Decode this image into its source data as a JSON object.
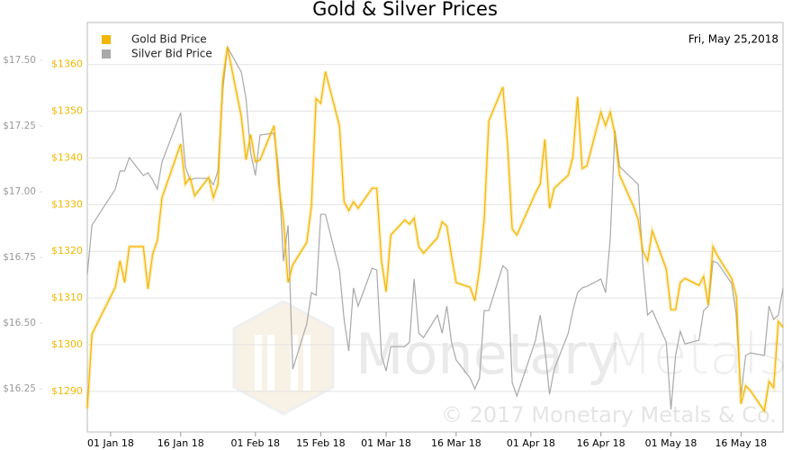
{
  "chart_data": {
    "type": "line",
    "title": "Gold & Silver Prices",
    "date_label": "Fri, May 25,2018",
    "watermark_brand": [
      "Monetary",
      "Metals"
    ],
    "copyright": "© 2017 Monetary Metals & Co.",
    "legend": "upper left",
    "grid": true,
    "x": [
      "2017-12-27",
      "2017-12-28",
      "2018-01-02",
      "2018-01-03",
      "2018-01-04",
      "2018-01-05",
      "2018-01-08",
      "2018-01-09",
      "2018-01-10",
      "2018-01-11",
      "2018-01-12",
      "2018-01-16",
      "2018-01-17",
      "2018-01-18",
      "2018-01-19",
      "2018-01-22",
      "2018-01-23",
      "2018-01-24",
      "2018-01-25",
      "2018-01-26",
      "2018-01-29",
      "2018-01-30",
      "2018-01-31",
      "2018-02-01",
      "2018-02-02",
      "2018-02-05",
      "2018-02-06",
      "2018-02-07",
      "2018-02-08",
      "2018-02-09",
      "2018-02-12",
      "2018-02-13",
      "2018-02-14",
      "2018-02-15",
      "2018-02-16",
      "2018-02-19",
      "2018-02-20",
      "2018-02-21",
      "2018-02-22",
      "2018-02-23",
      "2018-02-26",
      "2018-02-27",
      "2018-02-28",
      "2018-03-01",
      "2018-03-02",
      "2018-03-05",
      "2018-03-06",
      "2018-03-07",
      "2018-03-08",
      "2018-03-09",
      "2018-03-12",
      "2018-03-13",
      "2018-03-14",
      "2018-03-15",
      "2018-03-16",
      "2018-03-19",
      "2018-03-20",
      "2018-03-21",
      "2018-03-22",
      "2018-03-23",
      "2018-03-26",
      "2018-03-27",
      "2018-03-28",
      "2018-03-29",
      "2018-04-02",
      "2018-04-03",
      "2018-04-04",
      "2018-04-05",
      "2018-04-06",
      "2018-04-09",
      "2018-04-10",
      "2018-04-11",
      "2018-04-12",
      "2018-04-13",
      "2018-04-16",
      "2018-04-17",
      "2018-04-18",
      "2018-04-19",
      "2018-04-20",
      "2018-04-23",
      "2018-04-24",
      "2018-04-25",
      "2018-04-26",
      "2018-04-27",
      "2018-04-30",
      "2018-05-01",
      "2018-05-02",
      "2018-05-03",
      "2018-05-04",
      "2018-05-07",
      "2018-05-08",
      "2018-05-09",
      "2018-05-10",
      "2018-05-11",
      "2018-05-14",
      "2018-05-15",
      "2018-05-16",
      "2018-05-17",
      "2018-05-18",
      "2018-05-21",
      "2018-05-22",
      "2018-05-23",
      "2018-05-24",
      "2018-05-25"
    ],
    "xlim": [
      "2017-12-27",
      "2018-05-25"
    ],
    "xticks": [
      {
        "value": "2018-01-01",
        "label": "01 Jan 18"
      },
      {
        "value": "2018-01-16",
        "label": "16 Jan 18"
      },
      {
        "value": "2018-02-01",
        "label": "01 Feb 18"
      },
      {
        "value": "2018-02-15",
        "label": "15 Feb 18"
      },
      {
        "value": "2018-03-01",
        "label": "01 Mar 18"
      },
      {
        "value": "2018-03-16",
        "label": "16 Mar 18"
      },
      {
        "value": "2018-04-01",
        "label": "01 Apr 18"
      },
      {
        "value": "2018-04-16",
        "label": "16 Apr 18"
      },
      {
        "value": "2018-05-01",
        "label": "01 May 18"
      },
      {
        "value": "2018-05-16",
        "label": "16 May 18"
      }
    ],
    "ylim": [
      1281.3,
      1369.0
    ],
    "yticks": [
      {
        "value": 1290,
        "label": "$1290"
      },
      {
        "value": 1300,
        "label": "$1300"
      },
      {
        "value": 1310,
        "label": "$1310"
      },
      {
        "value": 1320,
        "label": "$1320"
      },
      {
        "value": 1330,
        "label": "$1330"
      },
      {
        "value": 1340,
        "label": "$1340"
      },
      {
        "value": 1350,
        "label": "$1350"
      },
      {
        "value": 1360,
        "label": "$1360"
      }
    ],
    "y2lim": [
      16.086,
      17.644
    ],
    "y2ticks": [
      {
        "value": 16.25,
        "label": "$16.25"
      },
      {
        "value": 16.5,
        "label": "$16.50"
      },
      {
        "value": 16.75,
        "label": "$16.75"
      },
      {
        "value": 17.0,
        "label": "$17.00"
      },
      {
        "value": 17.25,
        "label": "$17.25"
      },
      {
        "value": 17.5,
        "label": "$17.50"
      }
    ],
    "series": [
      {
        "name": "Gold Bid Price",
        "color": "#f2b600",
        "values": [
          1286.3,
          1302.3,
          1312.3,
          1318,
          1313.3,
          1321,
          1321,
          1311.9,
          1319.4,
          1322.3,
          1331.5,
          1343,
          1334.4,
          1335.8,
          1331.9,
          1335.8,
          1331.5,
          1334.4,
          1356.5,
          1363.8,
          1348.8,
          1339.6,
          1345,
          1339.2,
          1339.6,
          1346.9,
          1334.4,
          1326.7,
          1313.3,
          1317.1,
          1321.9,
          1329.6,
          1352.7,
          1351.7,
          1358.5,
          1346.9,
          1330.6,
          1328.7,
          1330.6,
          1329.2,
          1333.5,
          1333.5,
          1318,
          1311.3,
          1323.5,
          1326.7,
          1325.8,
          1327.1,
          1321,
          1319.6,
          1322.9,
          1326.3,
          1325.4,
          1319,
          1313.3,
          1312.3,
          1309.4,
          1316.2,
          1326.7,
          1347.9,
          1355.2,
          1343,
          1324.8,
          1323.5,
          1332.5,
          1334.4,
          1344,
          1329.2,
          1333.5,
          1336.3,
          1340.2,
          1353.1,
          1337.7,
          1338.3,
          1349.8,
          1346.9,
          1349.8,
          1345,
          1336.3,
          1329.6,
          1326.7,
          1320,
          1318,
          1324.4,
          1316.2,
          1307.5,
          1307.5,
          1313.3,
          1314.2,
          1312.7,
          1314.6,
          1308.5,
          1321,
          1319,
          1314.2,
          1310.4,
          1287.3,
          1291.2,
          1290.2,
          1285.8,
          1292.1,
          1290.8,
          1305,
          1303.7
        ]
      },
      {
        "name": "Silver Bid Price",
        "color": "#a9a9a9",
        "axis": "y2",
        "values": [
          16.685,
          16.873,
          17.01,
          17.079,
          17.079,
          17.13,
          17.062,
          17.072,
          17.045,
          17.01,
          17.113,
          17.301,
          17.096,
          17.045,
          17.051,
          17.051,
          17.027,
          17.079,
          17.387,
          17.551,
          17.455,
          17.353,
          17.147,
          17.062,
          17.216,
          17.223,
          17.079,
          16.736,
          16.873,
          16.325,
          16.497,
          16.616,
          16.606,
          16.914,
          16.914,
          16.702,
          16.514,
          16.394,
          16.634,
          16.565,
          16.709,
          16.702,
          16.377,
          16.318,
          16.411,
          16.411,
          16.428,
          16.668,
          16.462,
          16.445,
          16.531,
          16.462,
          16.565,
          16.428,
          16.36,
          16.291,
          16.25,
          16.291,
          16.548,
          16.548,
          16.719,
          16.702,
          16.274,
          16.223,
          16.435,
          16.531,
          16.401,
          16.229,
          16.325,
          16.462,
          16.548,
          16.616,
          16.634,
          16.64,
          16.668,
          16.616,
          16.822,
          17.233,
          17.096,
          17.045,
          17.027,
          16.719,
          16.531,
          16.548,
          16.428,
          16.171,
          16.377,
          16.469,
          16.421,
          16.435,
          16.548,
          16.565,
          16.736,
          16.729,
          16.651,
          16.531,
          16.223,
          16.377,
          16.387,
          16.377,
          16.565,
          16.514,
          16.531,
          16.634
        ]
      }
    ]
  }
}
